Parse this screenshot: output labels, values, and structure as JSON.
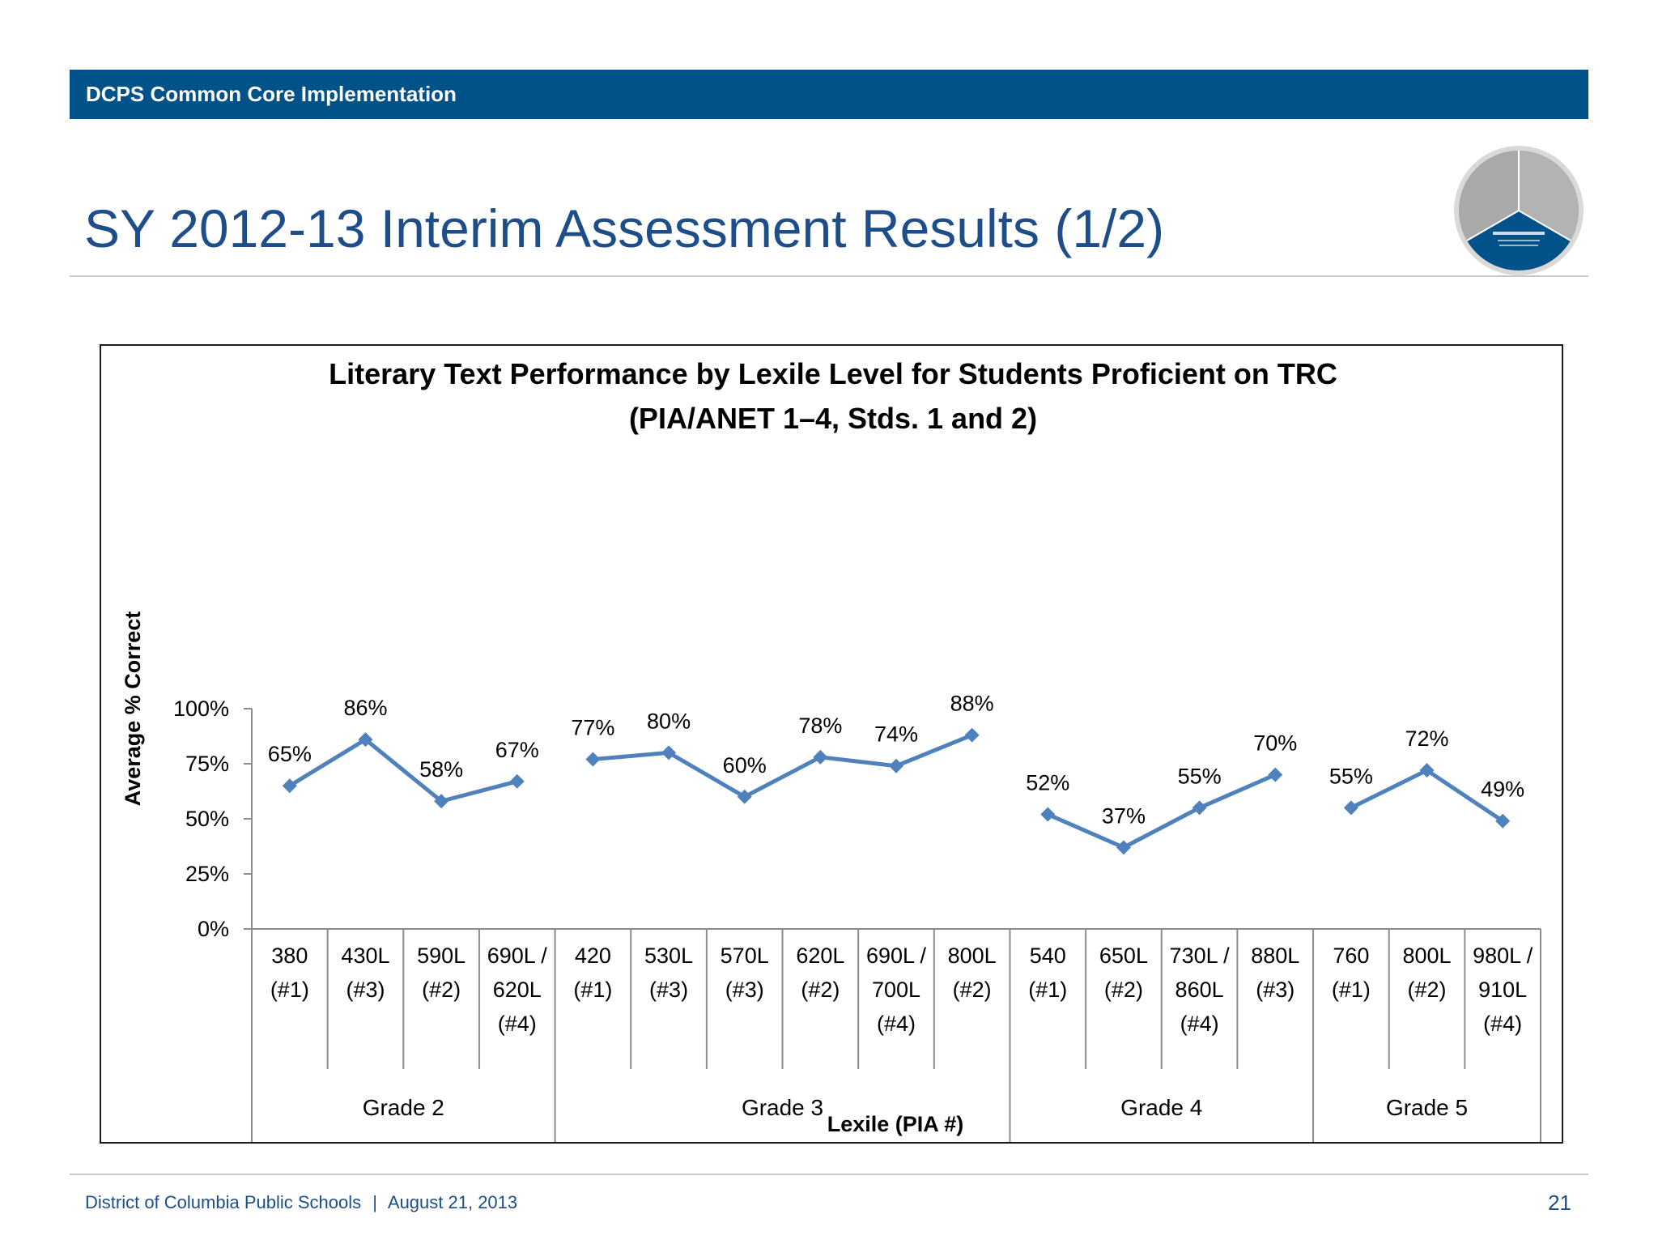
{
  "header": {
    "label": "DCPS Common Core Implementation"
  },
  "slide": {
    "title": "SY 2012-13 Interim Assessment Results (1/2)"
  },
  "footer": {
    "org": "District of Columbia Public Schools",
    "separator": "|",
    "date": "August 21, 2013",
    "page_number": "21"
  },
  "colors": {
    "brand": "#005288",
    "title": "#1d4e89",
    "series": "#4f81bd"
  },
  "chart_data": {
    "type": "line",
    "title_lines": [
      "Literary Text Performance by Lexile Level for Students Proficient on TRC",
      "(PIA/ANET 1–4, Stds. 1 and 2)"
    ],
    "xlabel": "Lexile (PIA #)",
    "ylabel": "Average % Correct",
    "ylim": [
      0,
      100
    ],
    "yticks": [
      "0%",
      "25%",
      "50%",
      "75%",
      "100%"
    ],
    "groups": [
      {
        "name": "Grade 2",
        "categories": [
          [
            "380",
            "(#1)"
          ],
          [
            "430L",
            "(#3)"
          ],
          [
            "590L",
            "(#2)"
          ],
          [
            "690L /",
            "620L",
            "(#4)"
          ]
        ],
        "values": [
          65,
          86,
          58,
          67
        ],
        "labels": [
          "65%",
          "86%",
          "58%",
          "67%"
        ]
      },
      {
        "name": "Grade 3",
        "categories": [
          [
            "420",
            "(#1)"
          ],
          [
            "530L",
            "(#3)"
          ],
          [
            "570L",
            "(#3)"
          ],
          [
            "620L",
            "(#2)"
          ],
          [
            "690L /",
            "700L",
            "(#4)"
          ],
          [
            "800L",
            "(#2)"
          ]
        ],
        "values": [
          77,
          80,
          60,
          78,
          74,
          88
        ],
        "labels": [
          "77%",
          "80%",
          "60%",
          "78%",
          "74%",
          "88%"
        ]
      },
      {
        "name": "Grade 4",
        "categories": [
          [
            "540",
            "(#1)"
          ],
          [
            "650L",
            "(#2)"
          ],
          [
            "730L /",
            "860L",
            "(#4)"
          ],
          [
            "880L",
            "(#3)"
          ]
        ],
        "values": [
          52,
          37,
          55,
          70
        ],
        "labels": [
          "52%",
          "37%",
          "55%",
          "70%"
        ]
      },
      {
        "name": "Grade 5",
        "categories": [
          [
            "760",
            "(#1)"
          ],
          [
            "800L",
            "(#2)"
          ],
          [
            "980L /",
            "910L",
            "(#4)"
          ]
        ],
        "values": [
          55,
          72,
          49
        ],
        "labels": [
          "55%",
          "72%",
          "49%"
        ]
      }
    ],
    "grid": false,
    "legend": "none"
  }
}
